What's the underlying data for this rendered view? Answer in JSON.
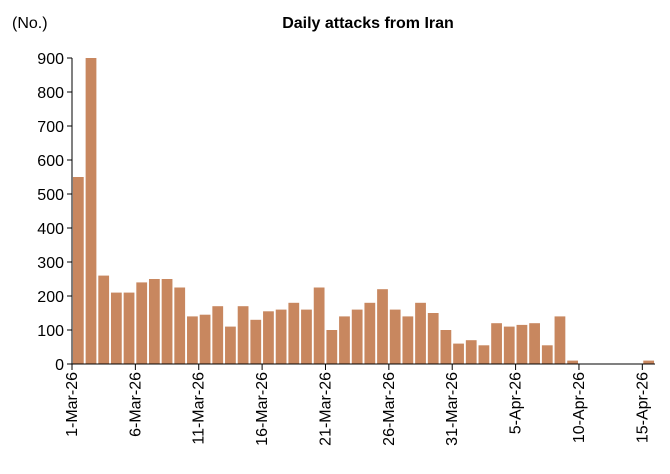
{
  "chart_data": {
    "type": "bar",
    "title": "Daily attacks from Iran",
    "ylabel": "(No.)",
    "xlabel": "",
    "ylim": [
      0,
      900
    ],
    "yticks": [
      0,
      100,
      200,
      300,
      400,
      500,
      600,
      700,
      800,
      900
    ],
    "grid": false,
    "bar_color": "#C8875F",
    "categories": [
      "1-Mar-26",
      "2-Mar-26",
      "3-Mar-26",
      "4-Mar-26",
      "5-Mar-26",
      "6-Mar-26",
      "7-Mar-26",
      "8-Mar-26",
      "9-Mar-26",
      "10-Mar-26",
      "11-Mar-26",
      "12-Mar-26",
      "13-Mar-26",
      "14-Mar-26",
      "15-Mar-26",
      "16-Mar-26",
      "17-Mar-26",
      "18-Mar-26",
      "19-Mar-26",
      "20-Mar-26",
      "21-Mar-26",
      "22-Mar-26",
      "23-Mar-26",
      "24-Mar-26",
      "25-Mar-26",
      "26-Mar-26",
      "27-Mar-26",
      "28-Mar-26",
      "29-Mar-26",
      "30-Mar-26",
      "31-Mar-26",
      "1-Apr-26",
      "2-Apr-26",
      "3-Apr-26",
      "4-Apr-26",
      "5-Apr-26",
      "6-Apr-26",
      "7-Apr-26",
      "8-Apr-26",
      "9-Apr-26",
      "10-Apr-26",
      "11-Apr-26",
      "12-Apr-26",
      "13-Apr-26",
      "14-Apr-26",
      "15-Apr-26"
    ],
    "values": [
      550,
      900,
      260,
      210,
      210,
      240,
      250,
      250,
      225,
      140,
      145,
      170,
      110,
      170,
      130,
      155,
      160,
      180,
      160,
      225,
      100,
      140,
      160,
      180,
      220,
      160,
      140,
      180,
      150,
      100,
      60,
      70,
      55,
      120,
      110,
      115,
      120,
      55,
      140,
      10,
      0,
      0,
      0,
      0,
      0,
      10
    ],
    "xtick_labels": [
      "1-Mar-26",
      "6-Mar-26",
      "11-Mar-26",
      "16-Mar-26",
      "21-Mar-26",
      "26-Mar-26",
      "31-Mar-26",
      "5-Apr-26",
      "10-Apr-26",
      "15-Apr-26"
    ],
    "xtick_every": 5
  }
}
